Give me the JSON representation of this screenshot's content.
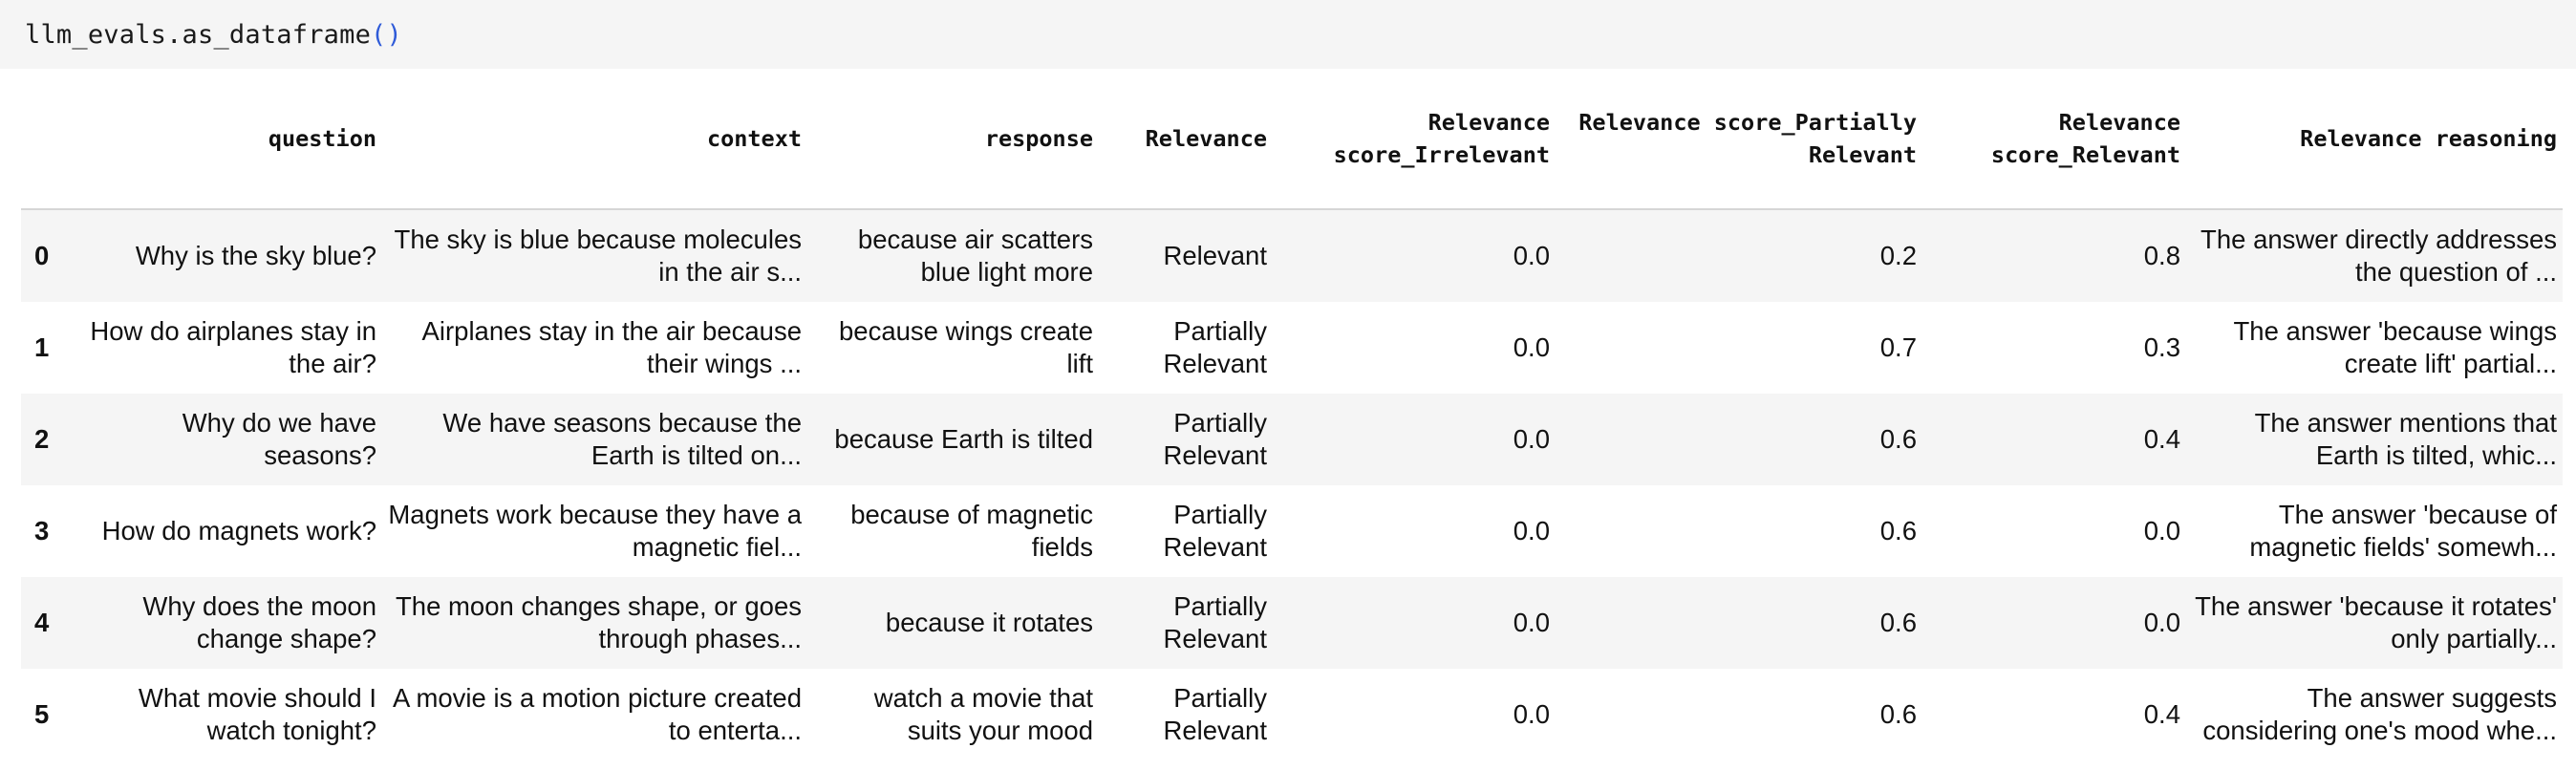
{
  "code_cell": {
    "text": "llm_evals.as_dataframe",
    "parens": "()"
  },
  "table": {
    "columns": [
      "",
      "question",
      "context",
      "response",
      "Relevance",
      "Relevance score_Irrelevant",
      "Relevance score_Partially Relevant",
      "Relevance score_Relevant",
      "Relevance reasoning"
    ],
    "rows": [
      {
        "index": "0",
        "question": "Why is the sky blue?",
        "context": "The sky is blue because molecules in the air s...",
        "response": "because air scatters blue light more",
        "relevance": "Relevant",
        "score_irrelevant": "0.0",
        "score_partially_relevant": "0.2",
        "score_relevant": "0.8",
        "reasoning": "The answer directly addresses the question of ..."
      },
      {
        "index": "1",
        "question": "How do airplanes stay in the air?",
        "context": "Airplanes stay in the air because their wings ...",
        "response": "because wings create lift",
        "relevance": "Partially Relevant",
        "score_irrelevant": "0.0",
        "score_partially_relevant": "0.7",
        "score_relevant": "0.3",
        "reasoning": "The answer 'because wings create lift' partial..."
      },
      {
        "index": "2",
        "question": "Why do we have seasons?",
        "context": "We have seasons because the Earth is tilted on...",
        "response": "because Earth is tilted",
        "relevance": "Partially Relevant",
        "score_irrelevant": "0.0",
        "score_partially_relevant": "0.6",
        "score_relevant": "0.4",
        "reasoning": "The answer mentions that Earth is tilted, whic..."
      },
      {
        "index": "3",
        "question": "How do magnets work?",
        "context": "Magnets work because they have a magnetic fiel...",
        "response": "because of magnetic fields",
        "relevance": "Partially Relevant",
        "score_irrelevant": "0.0",
        "score_partially_relevant": "0.6",
        "score_relevant": "0.0",
        "reasoning": "The answer 'because of magnetic fields' somewh..."
      },
      {
        "index": "4",
        "question": "Why does the moon change shape?",
        "context": "The moon changes shape, or goes through phases...",
        "response": "because it rotates",
        "relevance": "Partially Relevant",
        "score_irrelevant": "0.0",
        "score_partially_relevant": "0.6",
        "score_relevant": "0.0",
        "reasoning": "The answer 'because it rotates' only partially..."
      },
      {
        "index": "5",
        "question": "What movie should I watch tonight?",
        "context": "A movie is a motion picture created to enterta...",
        "response": "watch a movie that suits your mood",
        "relevance": "Partially Relevant",
        "score_irrelevant": "0.0",
        "score_partially_relevant": "0.6",
        "score_relevant": "0.4",
        "reasoning": "The answer suggests considering one's mood whe..."
      }
    ]
  }
}
